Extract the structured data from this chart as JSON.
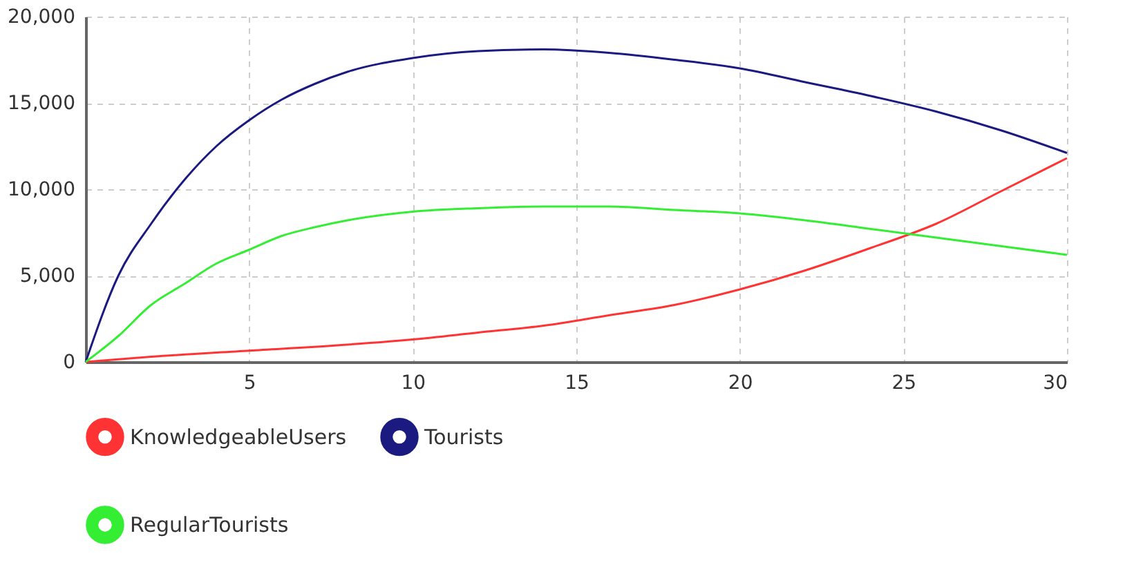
{
  "chart_data": {
    "type": "line",
    "xlim": [
      0,
      30
    ],
    "xticks": [
      5,
      10,
      15,
      20,
      25,
      30
    ],
    "ylim": [
      0,
      20000
    ],
    "yticks": [
      0,
      {
        "value": 5000,
        "label": "5,000"
      },
      {
        "value": 10000,
        "label": "10,000"
      },
      {
        "value": 15000,
        "label": "15,000"
      },
      {
        "value": 20000,
        "label": "20,000"
      }
    ],
    "grid": true,
    "legend": "bottom",
    "marker": "none",
    "line_style": "solid",
    "series": [
      {
        "name": "KnowledgeableUsers",
        "color": "#ff3333",
        "x": [
          0,
          2,
          5,
          8,
          10,
          12,
          14,
          16,
          18,
          20,
          22,
          24,
          26,
          28,
          30
        ],
        "values": [
          0,
          300,
          650,
          1000,
          1300,
          1700,
          2100,
          2700,
          3300,
          4200,
          5300,
          6600,
          8000,
          9900,
          11800
        ]
      },
      {
        "name": "Tourists",
        "color": "#1a1a80",
        "x": [
          0,
          1,
          2,
          3,
          4,
          5,
          6,
          7,
          8,
          10,
          12,
          14,
          16,
          18,
          20,
          22,
          24,
          26,
          28,
          30
        ],
        "values": [
          0,
          5000,
          8000,
          10500,
          12500,
          14000,
          15200,
          16100,
          16800,
          17600,
          18000,
          18100,
          17900,
          17500,
          17000,
          16200,
          15400,
          14500,
          13400,
          12100
        ]
      },
      {
        "name": "RegularTourists",
        "color": "#33ee33",
        "x": [
          0,
          1,
          2,
          3,
          4,
          5,
          6,
          7,
          8,
          10,
          12,
          14,
          16,
          18,
          20,
          22,
          24,
          26,
          28,
          30
        ],
        "values": [
          0,
          1500,
          3300,
          4500,
          5700,
          6500,
          7300,
          7800,
          8200,
          8700,
          8900,
          9000,
          9000,
          8800,
          8600,
          8200,
          7700,
          7200,
          6700,
          6200
        ]
      }
    ]
  }
}
